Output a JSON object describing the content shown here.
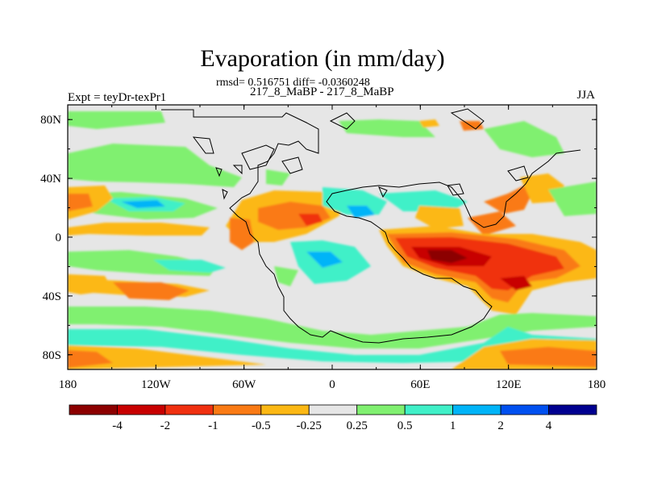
{
  "title": "Evaporation (in mm/day)",
  "stats": "rmsd= 0.516751 diff= -0.0360248",
  "case_label": "217_8_MaBP - 217_8_MaBP",
  "left_label": "Expt = teyDr-texPr1",
  "right_label": "JJA",
  "chart_data": {
    "type": "heatmap",
    "variable": "Evaporation difference",
    "units": "mm/day",
    "lon_ticks": [
      "180",
      "120W",
      "60W",
      "0",
      "60E",
      "120E",
      "180"
    ],
    "lat_ticks": [
      "80N",
      "40N",
      "0",
      "40S",
      "80S"
    ],
    "colorbar": {
      "labels": [
        "-4",
        "-2",
        "-1",
        "-0.5",
        "-0.25",
        "0.25",
        "0.5",
        "1",
        "2",
        "4"
      ],
      "colors": [
        "#8c0000",
        "#c80000",
        "#f03010",
        "#fa7a14",
        "#fcb814",
        "#e6e6e6",
        "#80f070",
        "#40f0c8",
        "#00b4f8",
        "#0050f0",
        "#000090"
      ]
    }
  }
}
